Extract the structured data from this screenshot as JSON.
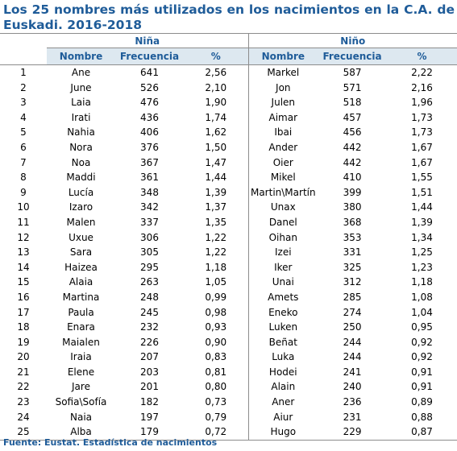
{
  "title": "Los 25 nombres más utilizados en los nacimientos en la C.A. de Euskadi. 2016-2018",
  "headers": {
    "nina": "Niña",
    "nino": "Niño",
    "col_nombre": "Nombre",
    "col_frecuencia": "Frecuencia",
    "col_pct": "%"
  },
  "rows": [
    {
      "rank": "1",
      "g_name": "Ane",
      "g_freq": "641",
      "g_pct": "2,56",
      "b_name": "Markel",
      "b_freq": "587",
      "b_pct": "2,22"
    },
    {
      "rank": "2",
      "g_name": "June",
      "g_freq": "526",
      "g_pct": "2,10",
      "b_name": "Jon",
      "b_freq": "571",
      "b_pct": "2,16"
    },
    {
      "rank": "3",
      "g_name": "Laia",
      "g_freq": "476",
      "g_pct": "1,90",
      "b_name": "Julen",
      "b_freq": "518",
      "b_pct": "1,96"
    },
    {
      "rank": "4",
      "g_name": "Irati",
      "g_freq": "436",
      "g_pct": "1,74",
      "b_name": "Aimar",
      "b_freq": "457",
      "b_pct": "1,73"
    },
    {
      "rank": "5",
      "g_name": "Nahia",
      "g_freq": "406",
      "g_pct": "1,62",
      "b_name": "Ibai",
      "b_freq": "456",
      "b_pct": "1,73"
    },
    {
      "rank": "6",
      "g_name": "Nora",
      "g_freq": "376",
      "g_pct": "1,50",
      "b_name": "Ander",
      "b_freq": "442",
      "b_pct": "1,67"
    },
    {
      "rank": "7",
      "g_name": "Noa",
      "g_freq": "367",
      "g_pct": "1,47",
      "b_name": "Oier",
      "b_freq": "442",
      "b_pct": "1,67"
    },
    {
      "rank": "8",
      "g_name": "Maddi",
      "g_freq": "361",
      "g_pct": "1,44",
      "b_name": "Mikel",
      "b_freq": "410",
      "b_pct": "1,55"
    },
    {
      "rank": "9",
      "g_name": "Lucía",
      "g_freq": "348",
      "g_pct": "1,39",
      "b_name": "Martin\\Martín",
      "b_freq": "399",
      "b_pct": "1,51"
    },
    {
      "rank": "10",
      "g_name": "Izaro",
      "g_freq": "342",
      "g_pct": "1,37",
      "b_name": "Unax",
      "b_freq": "380",
      "b_pct": "1,44"
    },
    {
      "rank": "11",
      "g_name": "Malen",
      "g_freq": "337",
      "g_pct": "1,35",
      "b_name": "Danel",
      "b_freq": "368",
      "b_pct": "1,39"
    },
    {
      "rank": "12",
      "g_name": "Uxue",
      "g_freq": "306",
      "g_pct": "1,22",
      "b_name": "Oihan",
      "b_freq": "353",
      "b_pct": "1,34"
    },
    {
      "rank": "13",
      "g_name": "Sara",
      "g_freq": "305",
      "g_pct": "1,22",
      "b_name": "Izei",
      "b_freq": "331",
      "b_pct": "1,25"
    },
    {
      "rank": "14",
      "g_name": "Haizea",
      "g_freq": "295",
      "g_pct": "1,18",
      "b_name": "Iker",
      "b_freq": "325",
      "b_pct": "1,23"
    },
    {
      "rank": "15",
      "g_name": "Alaia",
      "g_freq": "263",
      "g_pct": "1,05",
      "b_name": "Unai",
      "b_freq": "312",
      "b_pct": "1,18"
    },
    {
      "rank": "16",
      "g_name": "Martina",
      "g_freq": "248",
      "g_pct": "0,99",
      "b_name": "Amets",
      "b_freq": "285",
      "b_pct": "1,08"
    },
    {
      "rank": "17",
      "g_name": "Paula",
      "g_freq": "245",
      "g_pct": "0,98",
      "b_name": "Eneko",
      "b_freq": "274",
      "b_pct": "1,04"
    },
    {
      "rank": "18",
      "g_name": "Enara",
      "g_freq": "232",
      "g_pct": "0,93",
      "b_name": "Luken",
      "b_freq": "250",
      "b_pct": "0,95"
    },
    {
      "rank": "19",
      "g_name": "Maialen",
      "g_freq": "226",
      "g_pct": "0,90",
      "b_name": "Beñat",
      "b_freq": "244",
      "b_pct": "0,92"
    },
    {
      "rank": "20",
      "g_name": "Iraia",
      "g_freq": "207",
      "g_pct": "0,83",
      "b_name": "Luka",
      "b_freq": "244",
      "b_pct": "0,92"
    },
    {
      "rank": "21",
      "g_name": "Elene",
      "g_freq": "203",
      "g_pct": "0,81",
      "b_name": "Hodei",
      "b_freq": "241",
      "b_pct": "0,91"
    },
    {
      "rank": "22",
      "g_name": "Jare",
      "g_freq": "201",
      "g_pct": "0,80",
      "b_name": "Alain",
      "b_freq": "240",
      "b_pct": "0,91"
    },
    {
      "rank": "23",
      "g_name": "Sofia\\Sofía",
      "g_freq": "182",
      "g_pct": "0,73",
      "b_name": "Aner",
      "b_freq": "236",
      "b_pct": "0,89"
    },
    {
      "rank": "24",
      "g_name": "Naia",
      "g_freq": "197",
      "g_pct": "0,79",
      "b_name": "Aiur",
      "b_freq": "231",
      "b_pct": "0,88"
    },
    {
      "rank": "25",
      "g_name": "Alba",
      "g_freq": "179",
      "g_pct": "0,72",
      "b_name": "Hugo",
      "b_freq": "229",
      "b_pct": "0,87"
    }
  ],
  "source": "Fuente: Eustat. Estadística de nacimientos",
  "colors": {
    "title": "#1f5c99",
    "header_bg": "#dde8f0",
    "rule": "#8c8c8c"
  }
}
